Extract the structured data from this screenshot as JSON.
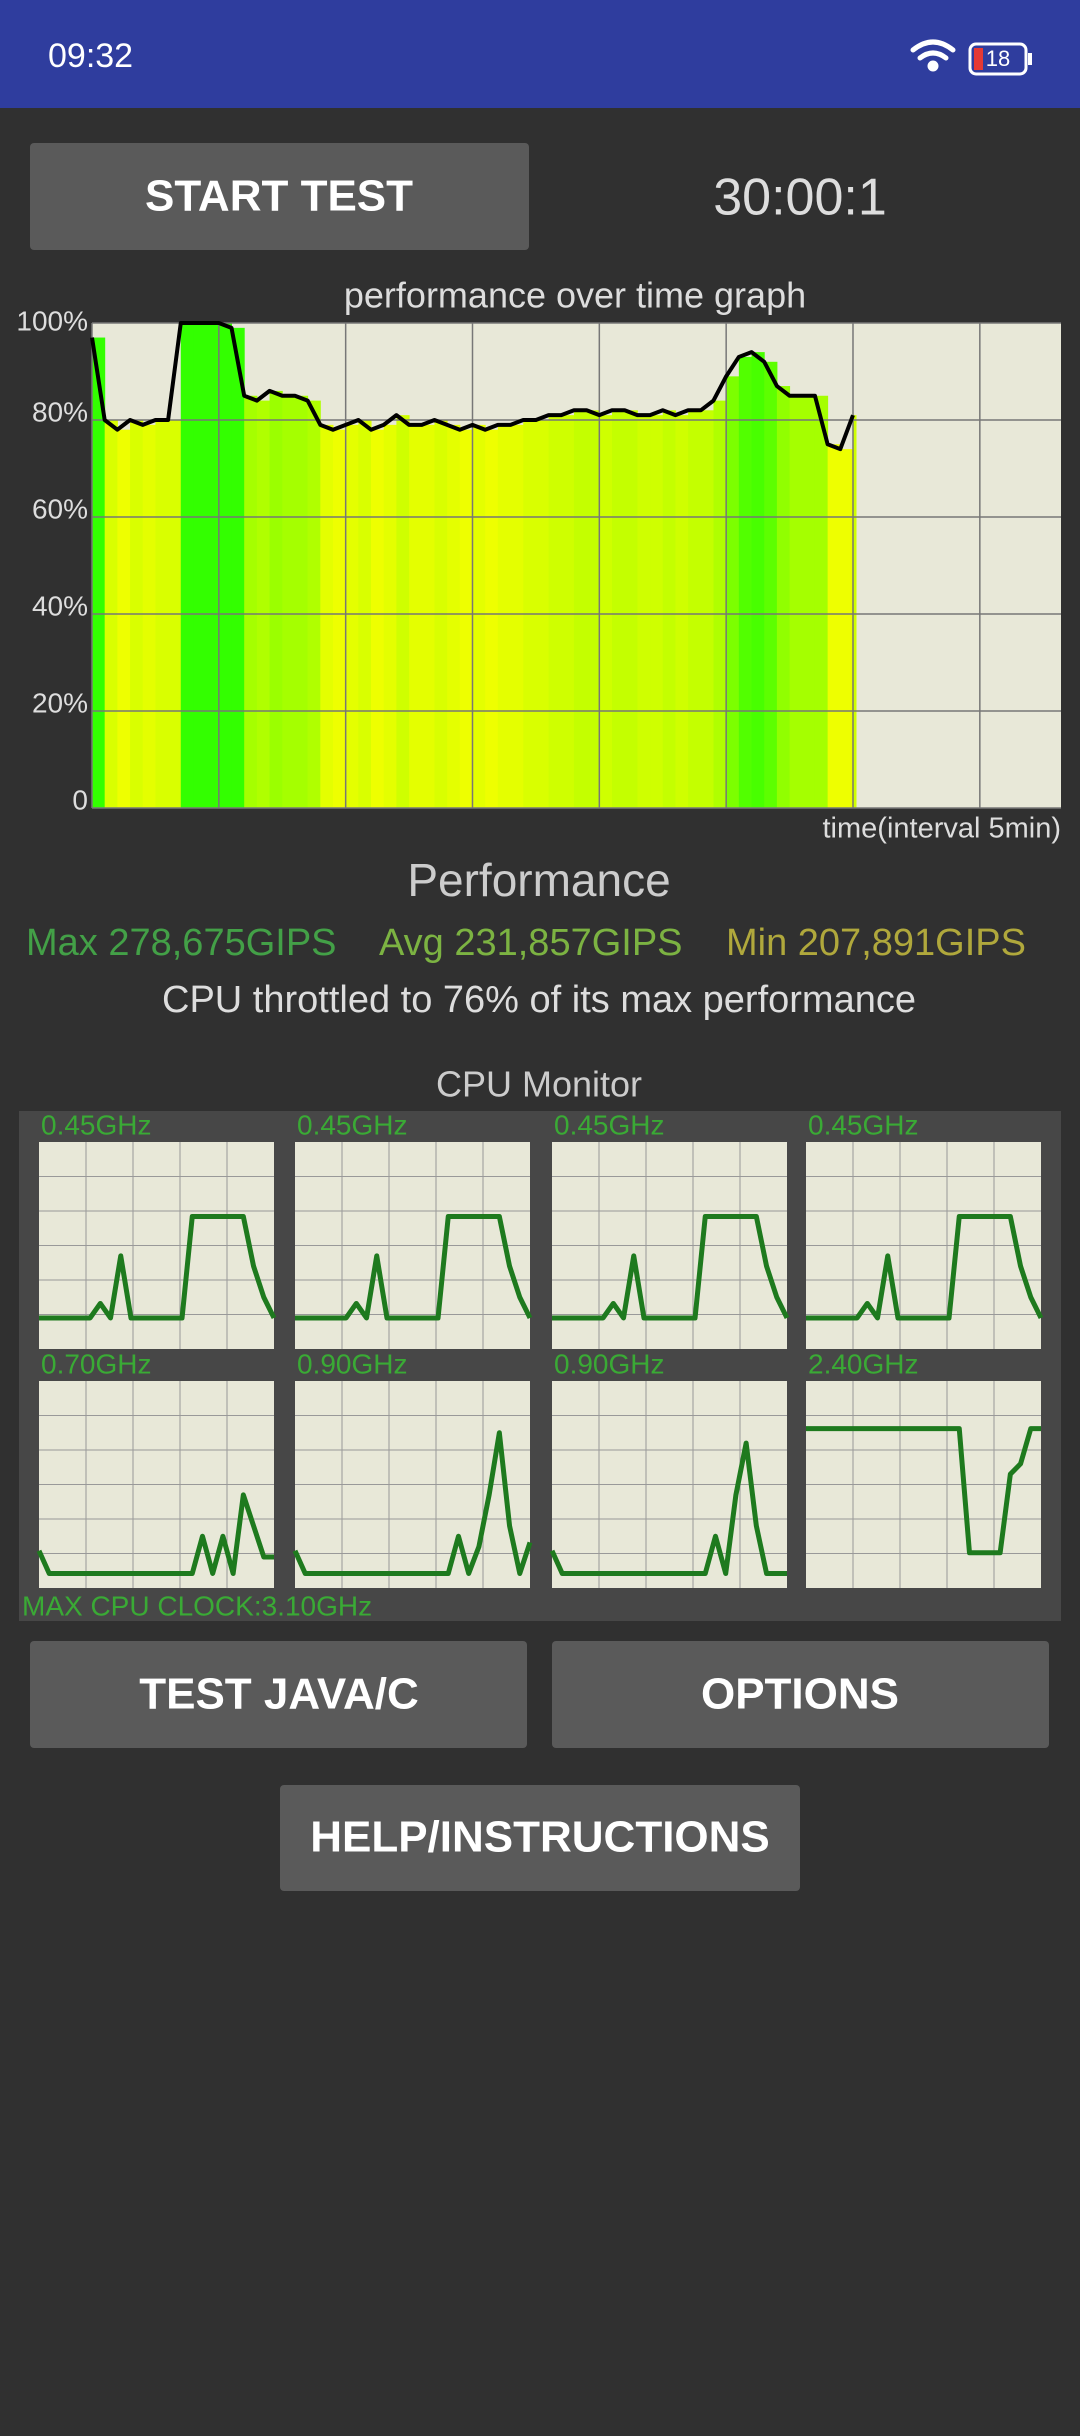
{
  "status_bar": {
    "time": "09:32",
    "battery": "18"
  },
  "start_button": "START TEST",
  "timer": "30:00:1",
  "chart_data": {
    "type": "line",
    "title": "performance over time graph",
    "x_label": "time(interval 5min)",
    "ylim": [
      0,
      100
    ],
    "yticks": [
      0,
      {
        "value": 20,
        "label": "20%"
      },
      {
        "value": 40,
        "label": "40%"
      },
      {
        "value": 60,
        "label": "60%"
      },
      {
        "value": 80,
        "label": "80%"
      },
      {
        "value": 100,
        "label": "100%"
      }
    ],
    "xlim": [
      0,
      38.2
    ],
    "xticks": [
      0,
      5,
      10,
      15,
      20,
      25,
      30,
      35
    ],
    "grid": true,
    "color": "#000000",
    "x": [
      0,
      0.5,
      1,
      1.5,
      2,
      2.5,
      3,
      3.5,
      4,
      4.5,
      5,
      5.5,
      6,
      6.5,
      7,
      7.5,
      8,
      8.5,
      9,
      9.5,
      10,
      10.5,
      11,
      11.5,
      12,
      12.5,
      13,
      13.5,
      14,
      14.5,
      15,
      15.5,
      16,
      16.5,
      17,
      17.5,
      18,
      18.5,
      19,
      19.5,
      20,
      20.5,
      21,
      21.5,
      22,
      22.5,
      23,
      23.5,
      24,
      24.5,
      25,
      25.5,
      26,
      26.5,
      27,
      27.5,
      28,
      28.5,
      29,
      29.5,
      30
    ],
    "values": [
      97,
      80,
      78,
      80,
      79,
      80,
      80,
      100,
      100,
      100,
      100,
      99,
      85,
      84,
      86,
      85,
      85,
      84,
      79,
      78,
      79,
      80,
      78,
      79,
      81,
      79,
      79,
      80,
      79,
      78,
      79,
      78,
      79,
      79,
      80,
      80,
      81,
      81,
      82,
      82,
      81,
      82,
      82,
      81,
      81,
      82,
      81,
      82,
      82,
      84,
      89,
      93,
      94,
      92,
      87,
      85,
      85,
      85,
      75,
      74,
      81
    ]
  },
  "performance": {
    "title": "Performance",
    "max": "Max 278,675GIPS",
    "avg": "Avg 231,857GIPS",
    "min": "Min 207,891GIPS",
    "throttle": "CPU throttled to 76% of its max performance"
  },
  "cpu_monitor": {
    "title": "CPU Monitor",
    "ylim": [
      0,
      100
    ],
    "color": "#1e7a1e",
    "max_clock": "MAX CPU CLOCK:3.10GHz",
    "cores": [
      {
        "freq": "0.45GHz",
        "values": [
          15,
          15,
          15,
          15,
          15,
          15,
          22,
          15,
          45,
          15,
          15,
          15,
          15,
          15,
          15,
          64,
          64,
          64,
          64,
          64,
          64,
          40,
          25,
          15
        ]
      },
      {
        "freq": "0.45GHz",
        "values": [
          15,
          15,
          15,
          15,
          15,
          15,
          22,
          15,
          45,
          15,
          15,
          15,
          15,
          15,
          15,
          64,
          64,
          64,
          64,
          64,
          64,
          40,
          25,
          15
        ]
      },
      {
        "freq": "0.45GHz",
        "values": [
          15,
          15,
          15,
          15,
          15,
          15,
          22,
          15,
          45,
          15,
          15,
          15,
          15,
          15,
          15,
          64,
          64,
          64,
          64,
          64,
          64,
          40,
          25,
          15
        ]
      },
      {
        "freq": "0.45GHz",
        "values": [
          15,
          15,
          15,
          15,
          15,
          15,
          22,
          15,
          45,
          15,
          15,
          15,
          15,
          15,
          15,
          64,
          64,
          64,
          64,
          64,
          64,
          40,
          25,
          15
        ]
      },
      {
        "freq": "0.70GHz",
        "values": [
          18,
          7,
          7,
          7,
          7,
          7,
          7,
          7,
          7,
          7,
          7,
          7,
          7,
          7,
          7,
          7,
          25,
          7,
          25,
          7,
          45,
          30,
          15,
          15
        ]
      },
      {
        "freq": "0.90GHz",
        "values": [
          18,
          7,
          7,
          7,
          7,
          7,
          7,
          7,
          7,
          7,
          7,
          7,
          7,
          7,
          7,
          7,
          25,
          7,
          20,
          45,
          75,
          30,
          7,
          22
        ]
      },
      {
        "freq": "0.90GHz",
        "values": [
          18,
          7,
          7,
          7,
          7,
          7,
          7,
          7,
          7,
          7,
          7,
          7,
          7,
          7,
          7,
          7,
          25,
          7,
          45,
          70,
          30,
          7,
          7,
          7
        ]
      },
      {
        "freq": "2.40GHz",
        "values": [
          77,
          77,
          77,
          77,
          77,
          77,
          77,
          77,
          77,
          77,
          77,
          77,
          77,
          77,
          77,
          77,
          17,
          17,
          17,
          17,
          55,
          60,
          77,
          77
        ]
      }
    ]
  },
  "buttons": {
    "java": "TEST JAVA/C",
    "options": "OPTIONS",
    "help": "HELP/INSTRUCTIONS"
  }
}
